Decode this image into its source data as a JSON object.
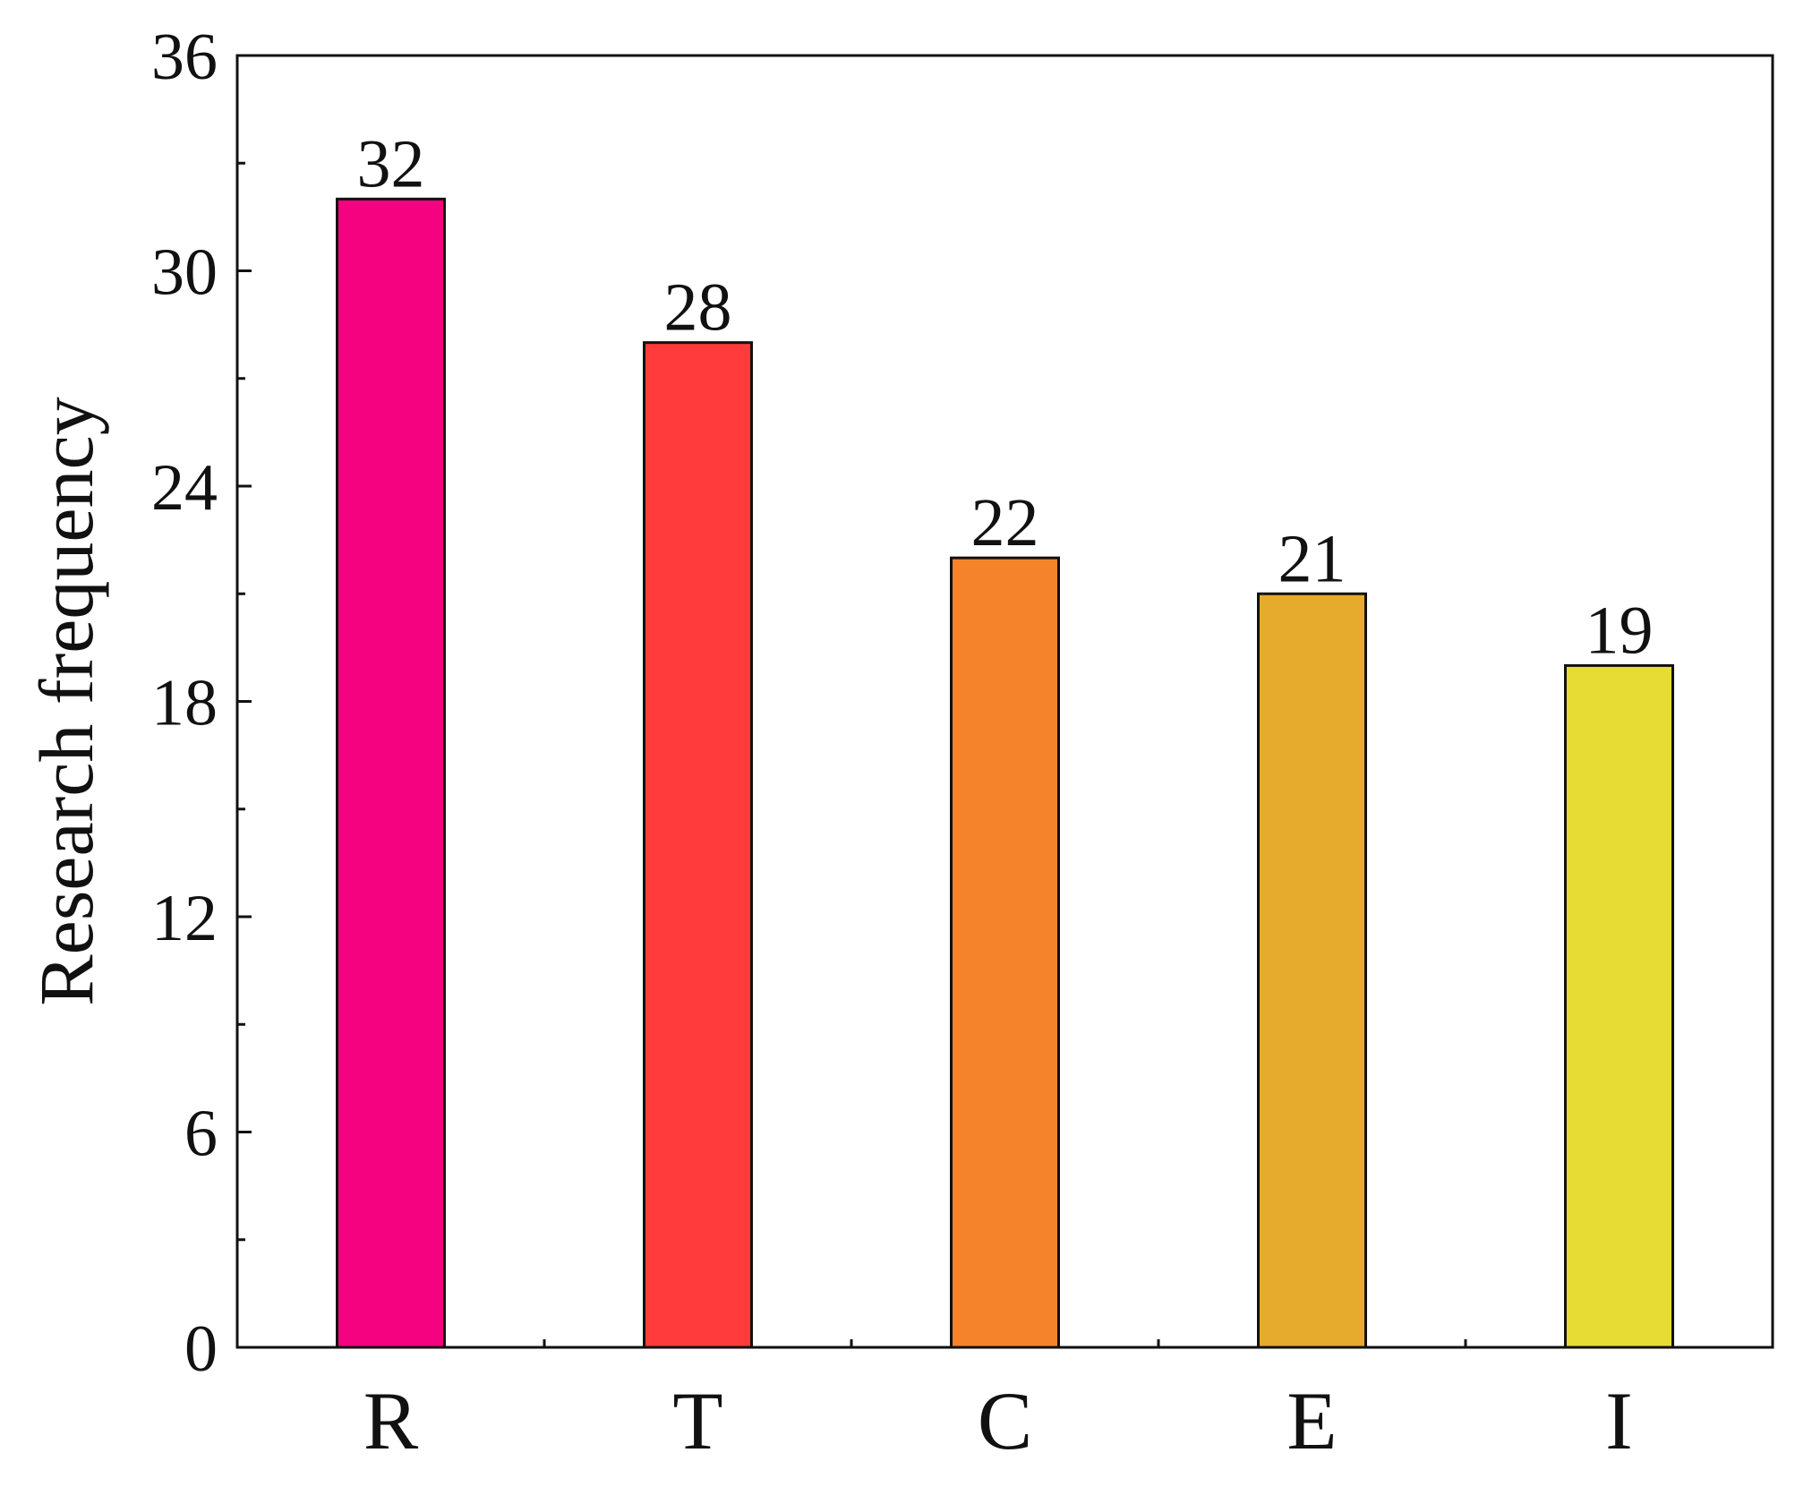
{
  "chart_data": {
    "type": "bar",
    "title": "",
    "xlabel": "",
    "ylabel": "Research frequency",
    "categories": [
      "R",
      "T",
      "C",
      "E",
      "I"
    ],
    "values": [
      32,
      28,
      22,
      21,
      19
    ],
    "data_labels": [
      "32",
      "28",
      "22",
      "21",
      "19"
    ],
    "colors": [
      "#F50280",
      "#FF3B3B",
      "#F5832B",
      "#E6AA2C",
      "#E6DC33"
    ],
    "ylim": [
      0,
      36
    ],
    "yticks_major": [
      0,
      6,
      12,
      18,
      24,
      30,
      36
    ],
    "yticks_minor": [
      3,
      9,
      15,
      21,
      27,
      33
    ],
    "ytick_labels": [
      "0",
      "6",
      "12",
      "18",
      "24",
      "30",
      "36"
    ],
    "grid": false,
    "legend": false
  }
}
